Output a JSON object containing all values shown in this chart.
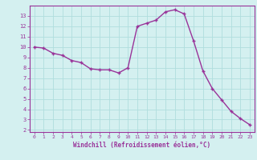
{
  "x": [
    0,
    1,
    2,
    3,
    4,
    5,
    6,
    7,
    8,
    9,
    10,
    11,
    12,
    13,
    14,
    15,
    16,
    17,
    18,
    19,
    20,
    21,
    22,
    23
  ],
  "y": [
    10.0,
    9.9,
    9.4,
    9.2,
    8.7,
    8.5,
    7.9,
    7.8,
    7.8,
    7.5,
    8.0,
    12.0,
    12.3,
    12.6,
    13.4,
    13.6,
    13.2,
    10.6,
    7.7,
    6.0,
    4.9,
    3.8,
    3.1,
    2.5
  ],
  "line_color": "#993399",
  "marker": "+",
  "marker_size": 3,
  "line_width": 1.0,
  "xlim": [
    -0.5,
    23.5
  ],
  "ylim": [
    1.8,
    14.0
  ],
  "yticks": [
    2,
    3,
    4,
    5,
    6,
    7,
    8,
    9,
    10,
    11,
    12,
    13
  ],
  "xticks": [
    0,
    1,
    2,
    3,
    4,
    5,
    6,
    7,
    8,
    9,
    10,
    11,
    12,
    13,
    14,
    15,
    16,
    17,
    18,
    19,
    20,
    21,
    22,
    23
  ],
  "xlabel": "Windchill (Refroidissement éolien,°C)",
  "background_color": "#d4f0f0",
  "grid_color": "#b0dede",
  "tick_color": "#993399",
  "label_color": "#993399"
}
